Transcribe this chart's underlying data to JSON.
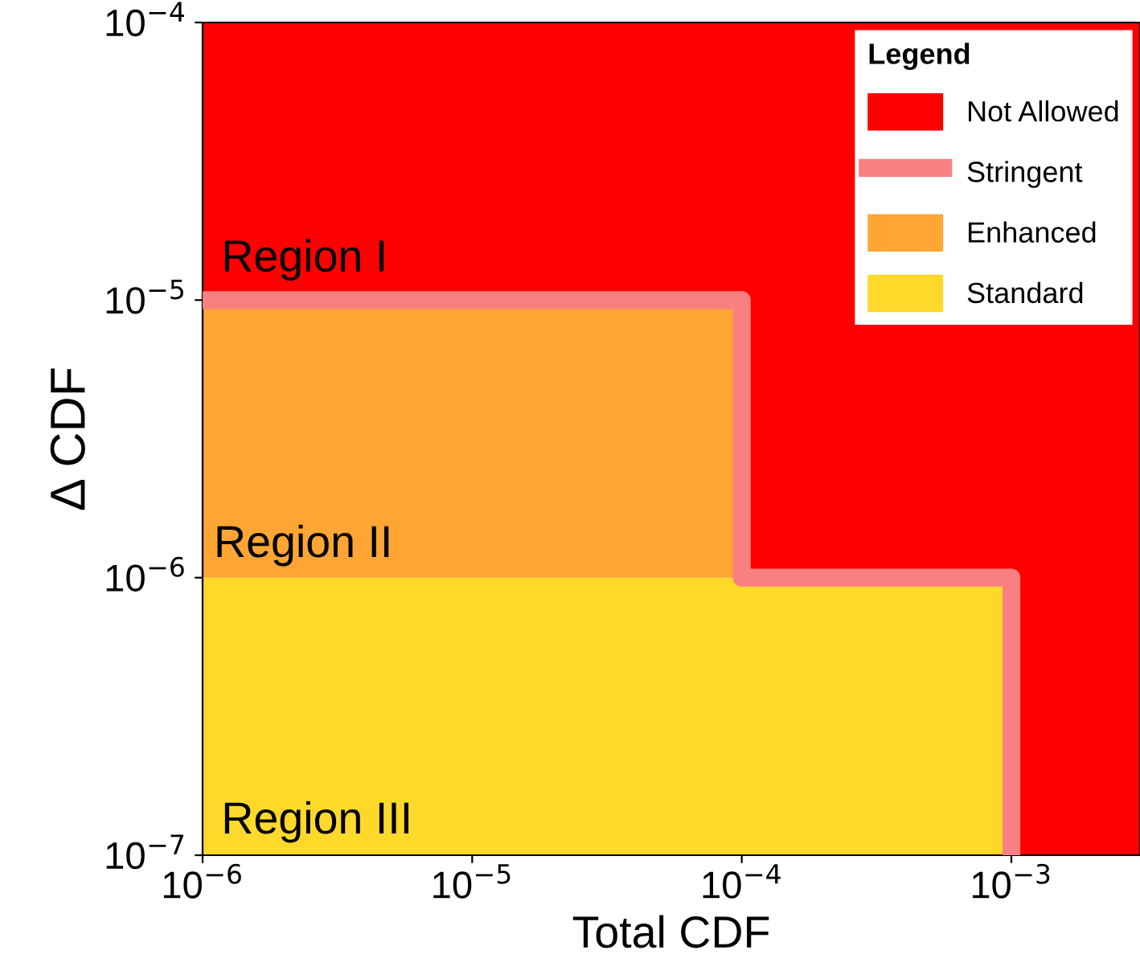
{
  "chart_data": {
    "type": "area",
    "xlabel": "Total CDF",
    "ylabel": "Δ CDF",
    "legend_title": "Legend",
    "log": "xy",
    "series": [
      {
        "name": "Standard",
        "color": "#ffd92a",
        "values": [
          1e-06,
          1e-06,
          1e-06,
          1e-06,
          null,
          null
        ]
      },
      {
        "name": "Enhanced",
        "color": "#ffa533",
        "values": [
          9e-06,
          9e-06,
          null,
          null,
          null,
          null
        ]
      },
      {
        "name": "Stringent",
        "type": "line",
        "color": "#f98080",
        "x": [
          1e-06,
          0.0001,
          0.0001,
          0.001,
          0.001
        ],
        "values": [
          1e-05,
          1e-05,
          1e-06,
          1e-06,
          1e-07
        ]
      },
      {
        "name": "Not Allowed",
        "color": "#ff0000",
        "values": [
          9e-05,
          9e-05,
          9.9e-05,
          9.9e-05,
          0.0001,
          0.0001
        ]
      }
    ],
    "x": [
      1e-06,
      0.0001,
      0.0001,
      0.001,
      0.001,
      0.003
    ],
    "stacked": true,
    "annotations": [
      "Region I",
      "Region II",
      "Region III"
    ],
    "xlim": [
      1e-06,
      0.003
    ],
    "ylim": [
      1e-07,
      0.0001
    ],
    "xticks": [
      {
        "value": 1e-06,
        "label": "10$^{−6}$"
      },
      {
        "value": 1e-05,
        "label": "10$^{−5}$"
      },
      {
        "value": 0.0001,
        "label": "10$^{−4}$"
      },
      {
        "value": 0.001,
        "label": "10$^{−3}$"
      }
    ],
    "yticks": [
      {
        "value": 1e-07,
        "label": "10$^{−7}$"
      },
      {
        "value": 1e-06,
        "label": "10$^{−6}$"
      },
      {
        "value": 1e-05,
        "label": "10$^{−5}$"
      },
      {
        "value": 0.0001,
        "label": "10$^{−4}$"
      }
    ],
    "grid": false,
    "legend": "top right"
  }
}
